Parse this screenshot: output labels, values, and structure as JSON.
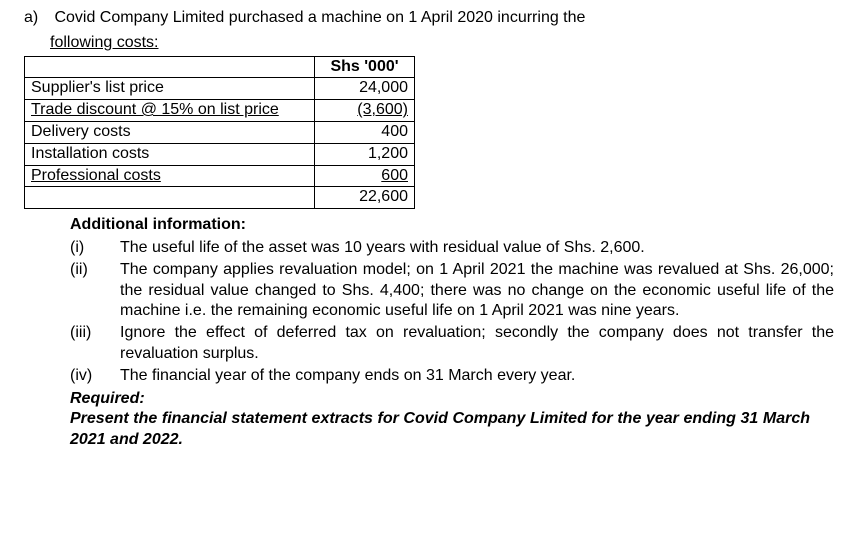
{
  "question": {
    "label": "a)",
    "intro": "Covid Company Limited purchased a machine on 1 April 2020 incurring the",
    "intro2": "following costs:"
  },
  "table": {
    "header": "Shs '000'",
    "rows": [
      {
        "label": "Supplier's list price",
        "value": "24,000",
        "underline": false
      },
      {
        "label": "Trade discount @ 15% on list price",
        "value": "(3,600)",
        "underline": true
      },
      {
        "label": "Delivery costs",
        "value": "400",
        "underline": false
      },
      {
        "label": "Installation costs",
        "value": "1,200",
        "underline": false
      },
      {
        "label": "Professional costs",
        "value": "600",
        "underline": true
      },
      {
        "label": "",
        "value": "22,600",
        "underline": false
      }
    ]
  },
  "additional_heading": "Additional information:",
  "info": [
    {
      "marker": "(i)",
      "text": "The useful life of the asset was 10 years with residual value of Shs. 2,600."
    },
    {
      "marker": "(ii)",
      "text": "The company applies revaluation model; on 1 April 2021 the machine was revalued at Shs. 26,000; the residual value changed to Shs. 4,400; there was no change on the economic useful life of the machine i.e. the remaining economic useful life on 1 April 2021 was nine years."
    },
    {
      "marker": "(iii)",
      "text": "Ignore the effect of deferred tax on revaluation; secondly the company does not transfer the revaluation surplus."
    },
    {
      "marker": "(iv)",
      "text": "The financial year of the company ends on 31 March every year."
    }
  ],
  "required_label": "Required:",
  "required_text": "Present the financial statement extracts for Covid Company Limited for the year ending 31 March 2021 and 2022."
}
